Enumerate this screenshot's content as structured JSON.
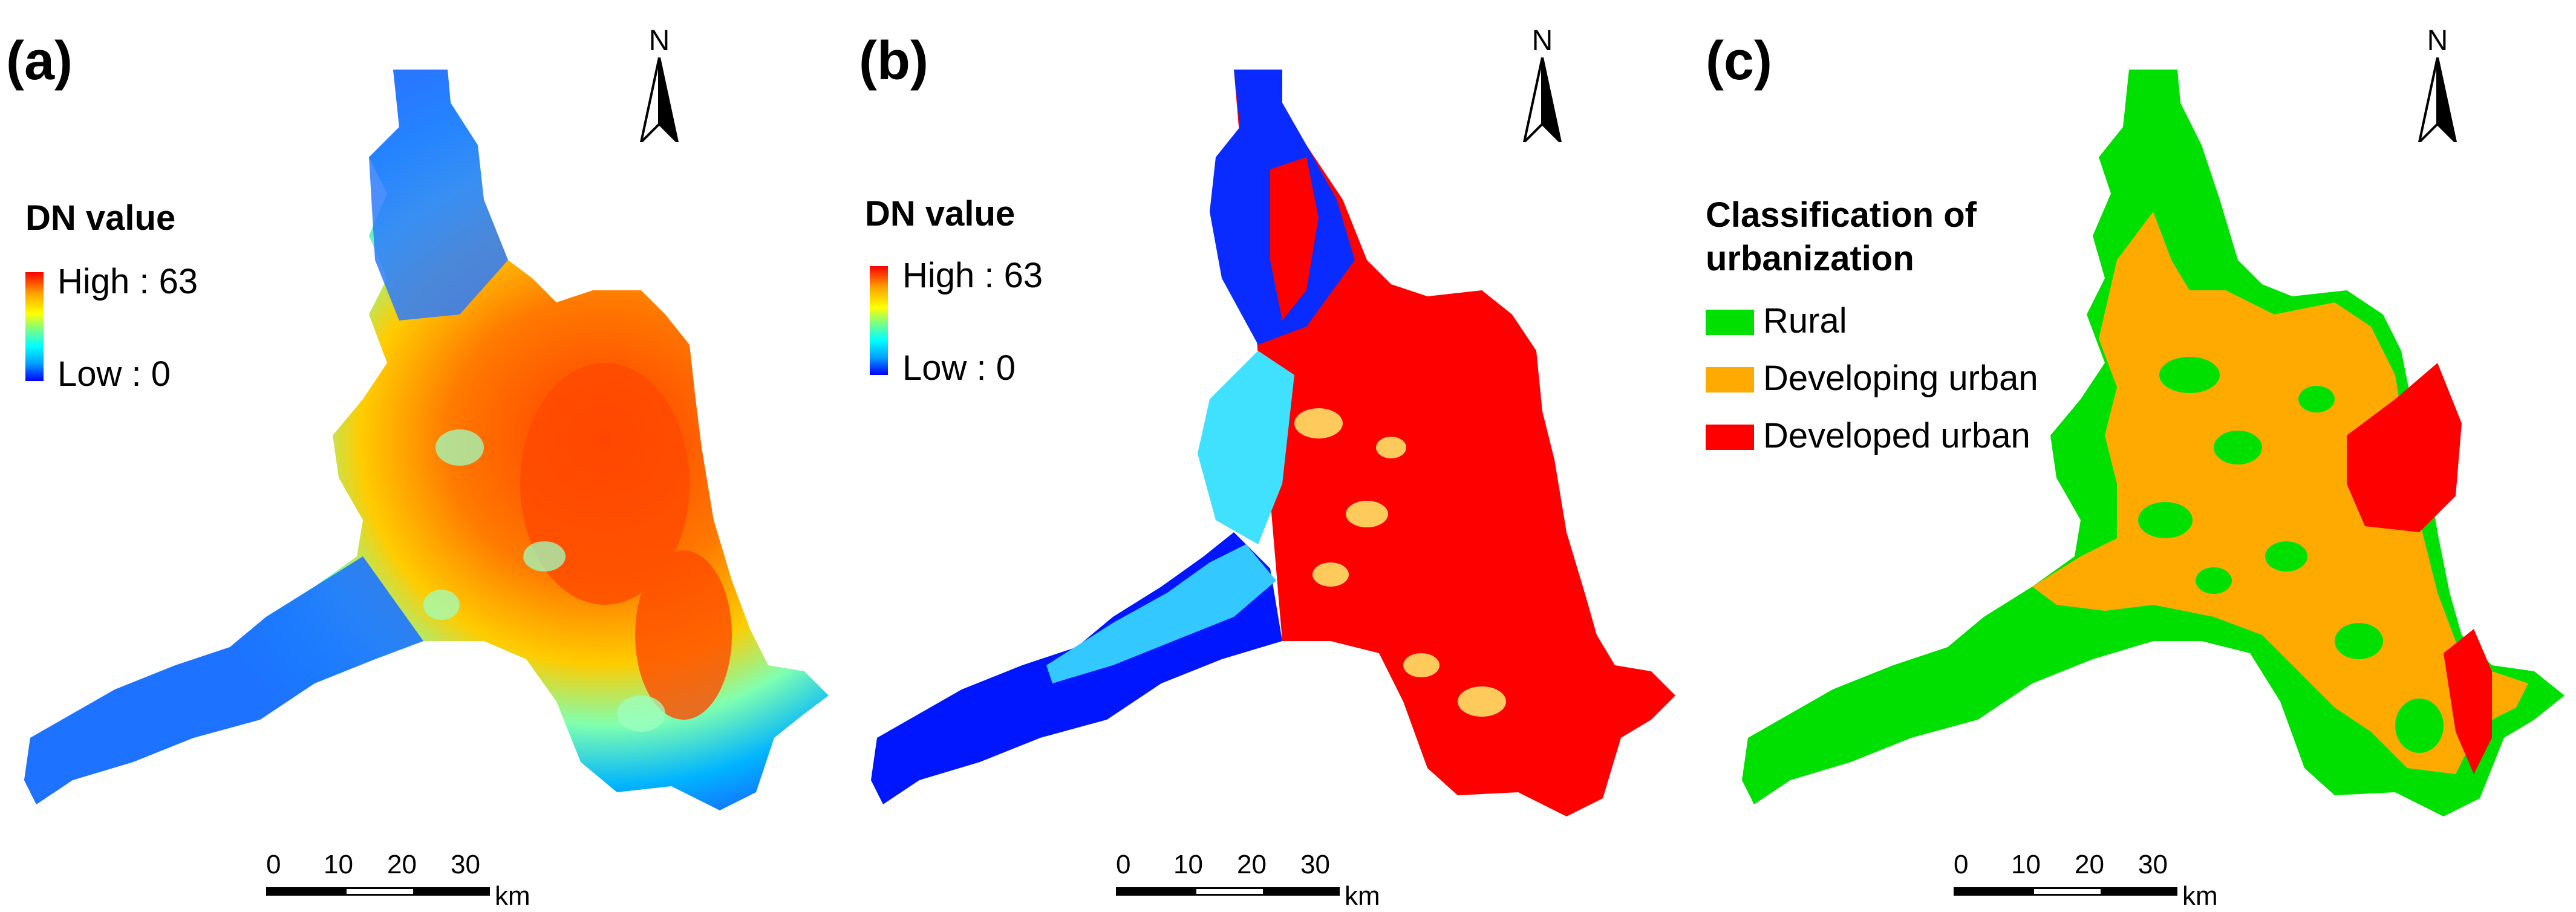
{
  "panels": [
    {
      "label": "(a)",
      "legend_title": "DN value",
      "ramp_high": "High : 63",
      "ramp_low": "Low : 0"
    },
    {
      "label": "(b)",
      "legend_title": "DN value",
      "ramp_high": "High : 63",
      "ramp_low": "Low : 0"
    },
    {
      "label": "(c)",
      "legend_title_line1": "Classification of",
      "legend_title_line2": "urbanization",
      "classes": [
        {
          "label": "Rural",
          "color": "#00e000"
        },
        {
          "label": "Developing urban",
          "color": "#ffaa00"
        },
        {
          "label": "Developed urban",
          "color": "#ff0000"
        }
      ]
    }
  ],
  "north_letter": "N",
  "scale": {
    "ticks": [
      "0",
      "10",
      "20",
      "30"
    ],
    "unit": "km"
  },
  "colors": {
    "high": "#ff0000",
    "low": "#0000ff"
  }
}
